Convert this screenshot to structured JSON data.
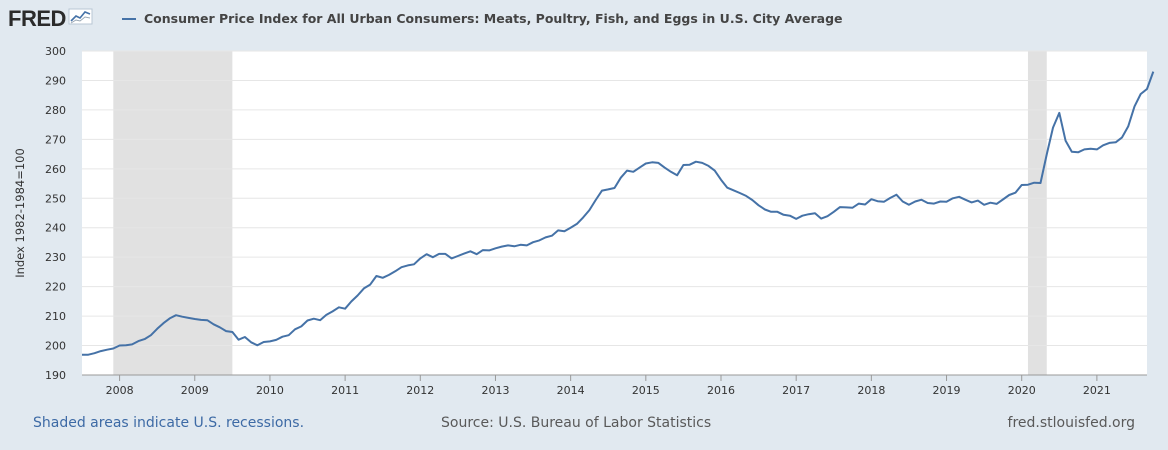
{
  "brand": {
    "logo_text": "FRED",
    "logo_icon": "fred-chart-icon"
  },
  "colors": {
    "series": "#4572a7",
    "recession": "#e1e1e1",
    "background": "#e1e9f0",
    "plot": "#ffffff"
  },
  "footer": {
    "recession_note": "Shaded areas indicate U.S. recessions.",
    "source": "Source: U.S. Bureau of Labor Statistics",
    "site": "fred.stlouisfed.org"
  },
  "chart_data": {
    "type": "line",
    "title": "Consumer Price Index for All Urban Consumers: Meats, Poultry, Fish, and Eggs in U.S. City Average",
    "ylabel": "Index 1982-1984=100",
    "xlabel": "",
    "xlim": [
      "2007-07",
      "2021-09"
    ],
    "ylim": [
      190,
      300
    ],
    "yticks": [
      190,
      200,
      210,
      220,
      230,
      240,
      250,
      260,
      270,
      280,
      290,
      300
    ],
    "xticks": [
      "2008",
      "2009",
      "2010",
      "2011",
      "2012",
      "2013",
      "2014",
      "2015",
      "2016",
      "2017",
      "2018",
      "2019",
      "2020",
      "2021"
    ],
    "grid": "horizontal",
    "recessions": [
      {
        "start": "2007-12",
        "end": "2009-06"
      },
      {
        "start": "2020-02",
        "end": "2020-04"
      }
    ],
    "series": [
      {
        "name": "Consumer Price Index for All Urban Consumers: Meats, Poultry, Fish, and Eggs in U.S. City Average",
        "points": [
          [
            "2007-07",
            196.9
          ],
          [
            "2007-08",
            196.9
          ],
          [
            "2007-09",
            197.4
          ],
          [
            "2007-10",
            198.1
          ],
          [
            "2007-11",
            198.6
          ],
          [
            "2007-12",
            199.0
          ],
          [
            "2008-01",
            200.0
          ],
          [
            "2008-02",
            200.1
          ],
          [
            "2008-03",
            200.4
          ],
          [
            "2008-04",
            201.5
          ],
          [
            "2008-05",
            202.2
          ],
          [
            "2008-06",
            203.5
          ],
          [
            "2008-07",
            205.7
          ],
          [
            "2008-08",
            207.6
          ],
          [
            "2008-09",
            209.2
          ],
          [
            "2008-10",
            210.3
          ],
          [
            "2008-11",
            209.8
          ],
          [
            "2008-12",
            209.4
          ],
          [
            "2009-01",
            209.0
          ],
          [
            "2009-02",
            208.7
          ],
          [
            "2009-03",
            208.6
          ],
          [
            "2009-04",
            207.2
          ],
          [
            "2009-05",
            206.2
          ],
          [
            "2009-06",
            204.9
          ],
          [
            "2009-07",
            204.6
          ],
          [
            "2009-08",
            202.0
          ],
          [
            "2009-09",
            202.9
          ],
          [
            "2009-10",
            201.1
          ],
          [
            "2009-11",
            200.1
          ],
          [
            "2009-12",
            201.2
          ],
          [
            "2010-01",
            201.4
          ],
          [
            "2010-02",
            201.9
          ],
          [
            "2010-03",
            203.0
          ],
          [
            "2010-04",
            203.5
          ],
          [
            "2010-05",
            205.5
          ],
          [
            "2010-06",
            206.5
          ],
          [
            "2010-07",
            208.5
          ],
          [
            "2010-08",
            209.1
          ],
          [
            "2010-09",
            208.6
          ],
          [
            "2010-10",
            210.4
          ],
          [
            "2010-11",
            211.6
          ],
          [
            "2010-12",
            213.0
          ],
          [
            "2011-01",
            212.5
          ],
          [
            "2011-02",
            215.0
          ],
          [
            "2011-03",
            217.0
          ],
          [
            "2011-04",
            219.4
          ],
          [
            "2011-05",
            220.7
          ],
          [
            "2011-06",
            223.6
          ],
          [
            "2011-07",
            223.0
          ],
          [
            "2011-08",
            224.0
          ],
          [
            "2011-09",
            225.2
          ],
          [
            "2011-10",
            226.6
          ],
          [
            "2011-11",
            227.2
          ],
          [
            "2011-12",
            227.6
          ],
          [
            "2012-01",
            229.6
          ],
          [
            "2012-02",
            231.0
          ],
          [
            "2012-03",
            230.0
          ],
          [
            "2012-04",
            231.1
          ],
          [
            "2012-05",
            231.1
          ],
          [
            "2012-06",
            229.6
          ],
          [
            "2012-07",
            230.4
          ],
          [
            "2012-08",
            231.2
          ],
          [
            "2012-09",
            232.0
          ],
          [
            "2012-10",
            231.0
          ],
          [
            "2012-11",
            232.4
          ],
          [
            "2012-12",
            232.3
          ],
          [
            "2013-01",
            233.0
          ],
          [
            "2013-02",
            233.6
          ],
          [
            "2013-03",
            234.0
          ],
          [
            "2013-04",
            233.7
          ],
          [
            "2013-05",
            234.2
          ],
          [
            "2013-06",
            234.0
          ],
          [
            "2013-07",
            235.1
          ],
          [
            "2013-08",
            235.7
          ],
          [
            "2013-09",
            236.7
          ],
          [
            "2013-10",
            237.3
          ],
          [
            "2013-11",
            239.1
          ],
          [
            "2013-12",
            238.8
          ],
          [
            "2014-01",
            240.0
          ],
          [
            "2014-02",
            241.3
          ],
          [
            "2014-03",
            243.5
          ],
          [
            "2014-04",
            246.0
          ],
          [
            "2014-05",
            249.4
          ],
          [
            "2014-06",
            252.6
          ],
          [
            "2014-07",
            253.0
          ],
          [
            "2014-08",
            253.5
          ],
          [
            "2014-09",
            257.0
          ],
          [
            "2014-10",
            259.4
          ],
          [
            "2014-11",
            259.0
          ],
          [
            "2014-12",
            260.4
          ],
          [
            "2015-01",
            261.8
          ],
          [
            "2015-02",
            262.2
          ],
          [
            "2015-03",
            262.0
          ],
          [
            "2015-04",
            260.4
          ],
          [
            "2015-05",
            259.0
          ],
          [
            "2015-06",
            257.8
          ],
          [
            "2015-07",
            261.3
          ],
          [
            "2015-08",
            261.4
          ],
          [
            "2015-09",
            262.4
          ],
          [
            "2015-10",
            262.0
          ],
          [
            "2015-11",
            261.0
          ],
          [
            "2015-12",
            259.4
          ],
          [
            "2016-01",
            256.3
          ],
          [
            "2016-02",
            253.6
          ],
          [
            "2016-03",
            252.7
          ],
          [
            "2016-04",
            251.8
          ],
          [
            "2016-05",
            250.8
          ],
          [
            "2016-06",
            249.4
          ],
          [
            "2016-07",
            247.6
          ],
          [
            "2016-08",
            246.2
          ],
          [
            "2016-09",
            245.4
          ],
          [
            "2016-10",
            245.4
          ],
          [
            "2016-11",
            244.4
          ],
          [
            "2016-12",
            244.1
          ],
          [
            "2017-01",
            243.0
          ],
          [
            "2017-02",
            244.1
          ],
          [
            "2017-03",
            244.6
          ],
          [
            "2017-04",
            244.9
          ],
          [
            "2017-05",
            243.1
          ],
          [
            "2017-06",
            243.9
          ],
          [
            "2017-07",
            245.4
          ],
          [
            "2017-08",
            247.0
          ],
          [
            "2017-09",
            246.9
          ],
          [
            "2017-10",
            246.8
          ],
          [
            "2017-11",
            248.2
          ],
          [
            "2017-12",
            247.9
          ],
          [
            "2018-01",
            249.7
          ],
          [
            "2018-02",
            249.0
          ],
          [
            "2018-03",
            248.8
          ],
          [
            "2018-04",
            250.1
          ],
          [
            "2018-05",
            251.2
          ],
          [
            "2018-06",
            248.9
          ],
          [
            "2018-07",
            247.8
          ],
          [
            "2018-08",
            248.9
          ],
          [
            "2018-09",
            249.5
          ],
          [
            "2018-10",
            248.4
          ],
          [
            "2018-11",
            248.2
          ],
          [
            "2018-12",
            248.9
          ],
          [
            "2019-01",
            248.8
          ],
          [
            "2019-02",
            250.0
          ],
          [
            "2019-03",
            250.5
          ],
          [
            "2019-04",
            249.5
          ],
          [
            "2019-05",
            248.6
          ],
          [
            "2019-06",
            249.2
          ],
          [
            "2019-07",
            247.8
          ],
          [
            "2019-08",
            248.5
          ],
          [
            "2019-09",
            248.1
          ],
          [
            "2019-10",
            249.6
          ],
          [
            "2019-11",
            251.1
          ],
          [
            "2019-12",
            251.9
          ],
          [
            "2020-01",
            254.5
          ],
          [
            "2020-02",
            254.6
          ],
          [
            "2020-03",
            255.3
          ],
          [
            "2020-04",
            255.2
          ],
          [
            "2020-05",
            265.0
          ],
          [
            "2020-06",
            274.0
          ],
          [
            "2020-07",
            279.0
          ],
          [
            "2020-08",
            269.5
          ],
          [
            "2020-09",
            265.8
          ],
          [
            "2020-10",
            265.6
          ],
          [
            "2020-11",
            266.6
          ],
          [
            "2020-12",
            266.8
          ],
          [
            "2021-01",
            266.6
          ],
          [
            "2021-02",
            268.0
          ],
          [
            "2021-03",
            268.8
          ],
          [
            "2021-04",
            269.0
          ],
          [
            "2021-05",
            270.6
          ],
          [
            "2021-06",
            274.4
          ],
          [
            "2021-07",
            281.2
          ],
          [
            "2021-08",
            285.4
          ],
          [
            "2021-09",
            287.1
          ],
          [
            "2021-10",
            293.0
          ]
        ]
      }
    ]
  }
}
